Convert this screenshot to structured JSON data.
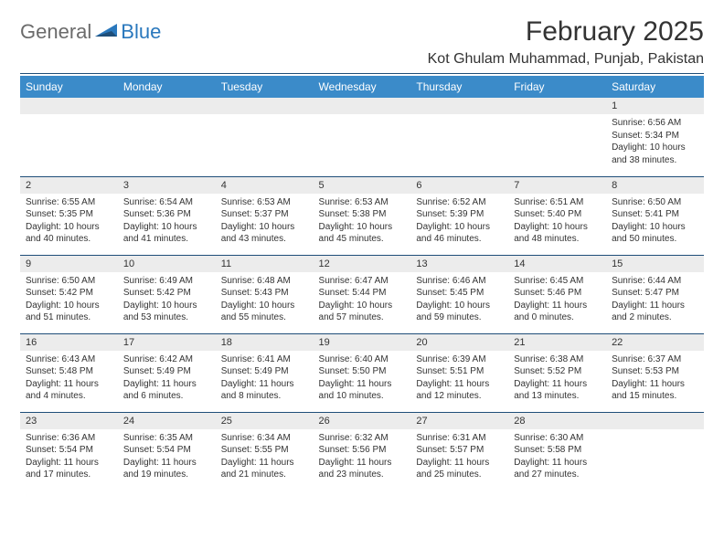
{
  "logo": {
    "general": "General",
    "blue": "Blue"
  },
  "title": "February 2025",
  "location": "Kot Ghulam Muhammad, Punjab, Pakistan",
  "colors": {
    "header_bg": "#3b8bc9",
    "header_text": "#ffffff",
    "divider": "#1f4e79",
    "daynum_bg": "#ececec",
    "logo_gray": "#6b6b6b",
    "logo_blue": "#2a78bd"
  },
  "weekdays": [
    "Sunday",
    "Monday",
    "Tuesday",
    "Wednesday",
    "Thursday",
    "Friday",
    "Saturday"
  ],
  "weeks": [
    [
      null,
      null,
      null,
      null,
      null,
      null,
      {
        "n": "1",
        "sr": "6:56 AM",
        "ss": "5:34 PM",
        "dl": "10 hours and 38 minutes."
      }
    ],
    [
      {
        "n": "2",
        "sr": "6:55 AM",
        "ss": "5:35 PM",
        "dl": "10 hours and 40 minutes."
      },
      {
        "n": "3",
        "sr": "6:54 AM",
        "ss": "5:36 PM",
        "dl": "10 hours and 41 minutes."
      },
      {
        "n": "4",
        "sr": "6:53 AM",
        "ss": "5:37 PM",
        "dl": "10 hours and 43 minutes."
      },
      {
        "n": "5",
        "sr": "6:53 AM",
        "ss": "5:38 PM",
        "dl": "10 hours and 45 minutes."
      },
      {
        "n": "6",
        "sr": "6:52 AM",
        "ss": "5:39 PM",
        "dl": "10 hours and 46 minutes."
      },
      {
        "n": "7",
        "sr": "6:51 AM",
        "ss": "5:40 PM",
        "dl": "10 hours and 48 minutes."
      },
      {
        "n": "8",
        "sr": "6:50 AM",
        "ss": "5:41 PM",
        "dl": "10 hours and 50 minutes."
      }
    ],
    [
      {
        "n": "9",
        "sr": "6:50 AM",
        "ss": "5:42 PM",
        "dl": "10 hours and 51 minutes."
      },
      {
        "n": "10",
        "sr": "6:49 AM",
        "ss": "5:42 PM",
        "dl": "10 hours and 53 minutes."
      },
      {
        "n": "11",
        "sr": "6:48 AM",
        "ss": "5:43 PM",
        "dl": "10 hours and 55 minutes."
      },
      {
        "n": "12",
        "sr": "6:47 AM",
        "ss": "5:44 PM",
        "dl": "10 hours and 57 minutes."
      },
      {
        "n": "13",
        "sr": "6:46 AM",
        "ss": "5:45 PM",
        "dl": "10 hours and 59 minutes."
      },
      {
        "n": "14",
        "sr": "6:45 AM",
        "ss": "5:46 PM",
        "dl": "11 hours and 0 minutes."
      },
      {
        "n": "15",
        "sr": "6:44 AM",
        "ss": "5:47 PM",
        "dl": "11 hours and 2 minutes."
      }
    ],
    [
      {
        "n": "16",
        "sr": "6:43 AM",
        "ss": "5:48 PM",
        "dl": "11 hours and 4 minutes."
      },
      {
        "n": "17",
        "sr": "6:42 AM",
        "ss": "5:49 PM",
        "dl": "11 hours and 6 minutes."
      },
      {
        "n": "18",
        "sr": "6:41 AM",
        "ss": "5:49 PM",
        "dl": "11 hours and 8 minutes."
      },
      {
        "n": "19",
        "sr": "6:40 AM",
        "ss": "5:50 PM",
        "dl": "11 hours and 10 minutes."
      },
      {
        "n": "20",
        "sr": "6:39 AM",
        "ss": "5:51 PM",
        "dl": "11 hours and 12 minutes."
      },
      {
        "n": "21",
        "sr": "6:38 AM",
        "ss": "5:52 PM",
        "dl": "11 hours and 13 minutes."
      },
      {
        "n": "22",
        "sr": "6:37 AM",
        "ss": "5:53 PM",
        "dl": "11 hours and 15 minutes."
      }
    ],
    [
      {
        "n": "23",
        "sr": "6:36 AM",
        "ss": "5:54 PM",
        "dl": "11 hours and 17 minutes."
      },
      {
        "n": "24",
        "sr": "6:35 AM",
        "ss": "5:54 PM",
        "dl": "11 hours and 19 minutes."
      },
      {
        "n": "25",
        "sr": "6:34 AM",
        "ss": "5:55 PM",
        "dl": "11 hours and 21 minutes."
      },
      {
        "n": "26",
        "sr": "6:32 AM",
        "ss": "5:56 PM",
        "dl": "11 hours and 23 minutes."
      },
      {
        "n": "27",
        "sr": "6:31 AM",
        "ss": "5:57 PM",
        "dl": "11 hours and 25 minutes."
      },
      {
        "n": "28",
        "sr": "6:30 AM",
        "ss": "5:58 PM",
        "dl": "11 hours and 27 minutes."
      },
      null
    ]
  ],
  "labels": {
    "sunrise": "Sunrise:",
    "sunset": "Sunset:",
    "daylight": "Daylight:"
  }
}
